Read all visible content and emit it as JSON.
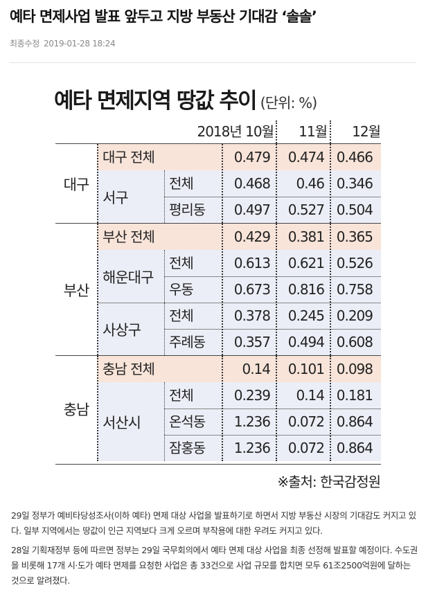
{
  "article": {
    "headline": "예타 면제사업 발표 앞두고 지방 부동산 기대감 ‘솔솔’",
    "meta_label": "최종수정",
    "timestamp": "2019-01-28 18:24"
  },
  "infographic": {
    "title": "예타 면제지역 땅값 추이",
    "unit": "(단위: %)",
    "columns": [
      "2018년 10월",
      "11월",
      "12월"
    ],
    "source": "※출처: 한국감정원",
    "colors": {
      "total_row": "#f8e4d9",
      "sub_row": "#eceef7"
    },
    "groups": [
      {
        "region": "대구",
        "total": {
          "label": "대구 전체",
          "values": [
            "0.479",
            "0.474",
            "0.466"
          ]
        },
        "districts": [
          {
            "name": "서구",
            "rows": [
              {
                "label": "전체",
                "values": [
                  "0.468",
                  "0.46",
                  "0.346"
                ]
              },
              {
                "label": "평리동",
                "values": [
                  "0.497",
                  "0.527",
                  "0.504"
                ]
              }
            ]
          }
        ]
      },
      {
        "region": "부산",
        "total": {
          "label": "부산 전체",
          "values": [
            "0.429",
            "0.381",
            "0.365"
          ]
        },
        "districts": [
          {
            "name": "해운대구",
            "rows": [
              {
                "label": "전체",
                "values": [
                  "0.613",
                  "0.621",
                  "0.526"
                ]
              },
              {
                "label": "우동",
                "values": [
                  "0.673",
                  "0.816",
                  "0.758"
                ]
              }
            ]
          },
          {
            "name": "사상구",
            "rows": [
              {
                "label": "전체",
                "values": [
                  "0.378",
                  "0.245",
                  "0.209"
                ]
              },
              {
                "label": "주례동",
                "values": [
                  "0.357",
                  "0.494",
                  "0.608"
                ]
              }
            ]
          }
        ]
      },
      {
        "region": "충남",
        "total": {
          "label": "충남 전체",
          "values": [
            "0.14",
            "0.101",
            "0.098"
          ]
        },
        "districts": [
          {
            "name": "서산시",
            "rows": [
              {
                "label": "전체",
                "values": [
                  "0.239",
                  "0.14",
                  "0.181"
                ]
              },
              {
                "label": "온석동",
                "values": [
                  "1.236",
                  "0.072",
                  "0.864"
                ]
              },
              {
                "label": "잠홍동",
                "values": [
                  "1.236",
                  "0.072",
                  "0.864"
                ]
              }
            ]
          }
        ]
      }
    ]
  },
  "body": {
    "paragraphs": [
      "29일 정부가 예비타당성조사(이하 예타) 면제 대상 사업을 발표하기로 하면서 지방 부동산 시장의 기대감도 커지고 있다. 일부 지역에서는 땅값이 인근 지역보다 크게 오르며 부작용에 대한 우려도 커지고 있다.",
      "28일 기획재정부 등에 따르면 정부는 29일 국무회의에서 예타 면제 대상 사업을 최종 선정해 발표할 예정이다. 수도권을 비롯해 17개 시·도가 예타 면제를 요청한 사업은 총 33건으로 사업 규모를 합치면 모두 61조2500억원에 달하는 것으로 알려졌다."
    ]
  }
}
